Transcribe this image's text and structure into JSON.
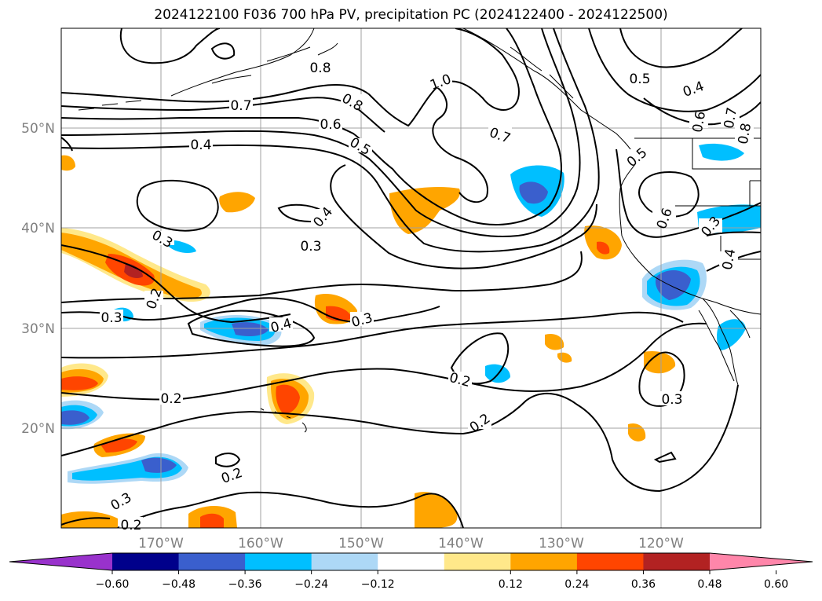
{
  "title": "2024122100 F036 700 hPa PV, precipitation PC (2024122400 - 2024122500)",
  "latitude_labels": [
    "50°N",
    "40°N",
    "30°N",
    "20°N"
  ],
  "longitude_labels": [
    "170°W",
    "160°W",
    "150°W",
    "140°W",
    "130°W",
    "120°W"
  ],
  "contour_labels": [
    "0.8",
    "0.7",
    "1.0",
    "0.8",
    "0.6",
    "0.4",
    "0.5",
    "0.7",
    "0.5",
    "0.4",
    "0.3",
    "0.3",
    "0.6",
    "0.3",
    "0.6",
    "0.7",
    "0.8",
    "0.4",
    "0.5",
    "0.4",
    "0.2",
    "0.3",
    "0.4",
    "0.3",
    "0.2",
    "0.2",
    "0.2",
    "0.3",
    "0.2",
    "0.3",
    "0.2"
  ],
  "colorbar": {
    "ticks": [
      "−0.60",
      "−0.48",
      "−0.36",
      "−0.24",
      "−0.12",
      "0.12",
      "0.24",
      "0.36",
      "0.48",
      "0.60"
    ],
    "colors": [
      "#9932cc",
      "#00008b",
      "#3a5fcd",
      "#00bfff",
      "#add8f6",
      "#ffffff",
      "#ffe88a",
      "#ffa500",
      "#ff4500",
      "#b22222",
      "#ff86aa"
    ]
  },
  "palette": {
    "pos_light": "#ffe88a",
    "pos_mid": "#ffa500",
    "pos_strong": "#ff4500",
    "neg_light": "#add8f6",
    "neg_mid": "#00bfff",
    "neg_strong": "#3a5fcd",
    "grid": "#a0a0a0",
    "contour": "#000000"
  }
}
